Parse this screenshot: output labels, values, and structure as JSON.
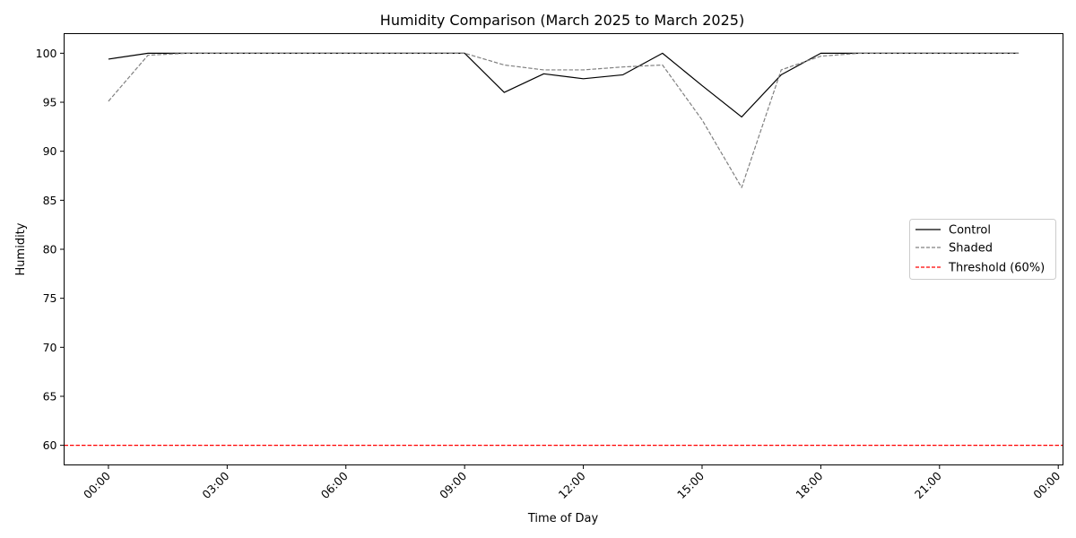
{
  "chart_data": {
    "type": "line",
    "title": "Humidity Comparison (March 2025 to March 2025)",
    "xlabel": "Time of Day",
    "ylabel": "Humidity",
    "xlim_hours": [
      -1.12,
      24.12
    ],
    "ylim": [
      58,
      102
    ],
    "x_tick_hours": [
      0,
      3,
      6,
      9,
      12,
      15,
      18,
      21,
      24
    ],
    "x_tick_labels": [
      "00:00",
      "03:00",
      "06:00",
      "09:00",
      "12:00",
      "15:00",
      "18:00",
      "21:00",
      "00:00"
    ],
    "y_ticks": [
      60,
      65,
      70,
      75,
      80,
      85,
      90,
      95,
      100
    ],
    "grid": false,
    "legend_position": "center-right",
    "x": [
      "00:00",
      "01:00",
      "02:00",
      "03:00",
      "04:00",
      "05:00",
      "06:00",
      "07:00",
      "08:00",
      "09:00",
      "10:00",
      "11:00",
      "12:00",
      "13:00",
      "14:00",
      "15:00",
      "16:00",
      "17:00",
      "18:00",
      "19:00",
      "20:00",
      "21:00",
      "22:00",
      "23:00"
    ],
    "series": [
      {
        "name": "Control",
        "color": "#000000",
        "style": "solid",
        "values": [
          99.4,
          100,
          100,
          100,
          100,
          100,
          100,
          100,
          100,
          100,
          96.0,
          97.9,
          97.4,
          97.8,
          100,
          96.7,
          93.5,
          97.8,
          100,
          100,
          100,
          100,
          100,
          100
        ]
      },
      {
        "name": "Shaded",
        "color": "#808080",
        "style": "dashed",
        "values": [
          95.1,
          99.8,
          100,
          100,
          100,
          100,
          100,
          100,
          100,
          100,
          98.8,
          98.3,
          98.3,
          98.6,
          98.8,
          93.2,
          86.3,
          98.3,
          99.7,
          100,
          100,
          100,
          100,
          100
        ]
      }
    ],
    "reference_lines": [
      {
        "name": "Threshold (60%)",
        "y": 60,
        "color": "#ff0000",
        "style": "dashed"
      }
    ]
  }
}
